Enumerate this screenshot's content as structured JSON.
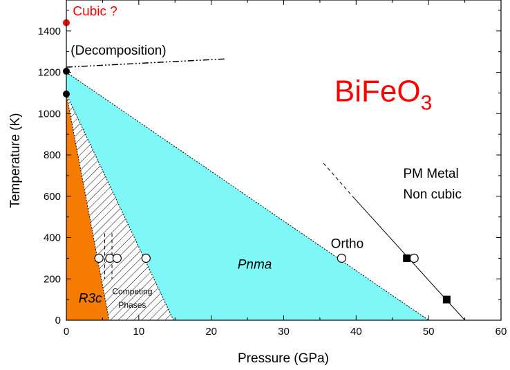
{
  "chart_data": {
    "type": "scatter",
    "title": "",
    "xlabel": "Pressure (GPa)",
    "ylabel": "Temperature (K)",
    "xlim": [
      0,
      60
    ],
    "ylim": [
      0,
      1550
    ],
    "x_ticks": [
      "0",
      "10",
      "20",
      "30",
      "40",
      "50",
      "60"
    ],
    "y_ticks": [
      "0",
      "200",
      "400",
      "600",
      "800",
      "1000",
      "1200",
      "1400"
    ],
    "grid": false,
    "regions": [
      {
        "label": "R3c",
        "color": "#f57c00",
        "polygon": [
          [
            0,
            0
          ],
          [
            0,
            1095
          ],
          [
            5.9,
            0
          ]
        ]
      },
      {
        "label": "Competing Phases",
        "color": "hatched",
        "polygon": [
          [
            0,
            1095
          ],
          [
            5.9,
            0
          ],
          [
            14.8,
            0
          ]
        ]
      },
      {
        "label": "Pnma",
        "color": "#7ff7f7",
        "polygon": [
          [
            0,
            1200
          ],
          [
            0,
            1095
          ],
          [
            14.8,
            0
          ],
          [
            50,
            0
          ]
        ]
      }
    ],
    "region_labels": [
      {
        "text": "R3c",
        "x": 3.3,
        "y": 85,
        "italic": true
      },
      {
        "text": "Competing",
        "x": 9.1,
        "y": 125
      },
      {
        "text": "Phases",
        "x": 9.1,
        "y": 60
      },
      {
        "text": "Pnma",
        "x": 26,
        "y": 250,
        "italic": true
      }
    ],
    "annotations": [
      {
        "text": "Cubic ?",
        "x": 0.9,
        "y": 1475,
        "color": "#ff0000"
      },
      {
        "text": "(Decomposition)",
        "x": 0.6,
        "y": 1285,
        "color": "#000000"
      },
      {
        "text": "Ortho",
        "x": 36.5,
        "y": 350,
        "color": "#000000"
      },
      {
        "text": "PM Metal",
        "x": 46.5,
        "y": 690,
        "color": "#000000"
      },
      {
        "text": "Non cubic",
        "x": 46.5,
        "y": 590,
        "color": "#000000"
      }
    ],
    "formula": {
      "main": "BiFeO",
      "sub": "3",
      "color": "#ff0000",
      "x": 37,
      "y": 1060
    },
    "series": [
      {
        "marker": "filled-circle",
        "color": "#ff0000",
        "points": [
          [
            0,
            1440
          ]
        ]
      },
      {
        "marker": "filled-circle",
        "color": "#000000",
        "points": [
          [
            0,
            1205
          ],
          [
            0,
            1095
          ]
        ]
      },
      {
        "marker": "open-circle",
        "color": "#000000",
        "points": [
          [
            4.5,
            300
          ],
          [
            6,
            300
          ],
          [
            7,
            300
          ],
          [
            11,
            300
          ],
          [
            38,
            300
          ],
          [
            48,
            300
          ]
        ]
      },
      {
        "marker": "filled-square",
        "color": "#000000",
        "points": [
          [
            47,
            300
          ],
          [
            52.5,
            100
          ]
        ]
      }
    ],
    "lines": [
      {
        "style": "dashdot",
        "points": [
          [
            0,
            1225
          ],
          [
            22,
            1265
          ]
        ]
      },
      {
        "style": "dotted",
        "points": [
          [
            0,
            1200
          ],
          [
            50,
            0
          ]
        ]
      },
      {
        "style": "dotted",
        "points": [
          [
            0,
            1095
          ],
          [
            14.8,
            0
          ]
        ]
      },
      {
        "style": "dotted",
        "points": [
          [
            0,
            1095
          ],
          [
            5.9,
            0
          ]
        ]
      },
      {
        "style": "dashed",
        "points": [
          [
            35.5,
            760
          ],
          [
            39.5,
            600
          ]
        ]
      },
      {
        "style": "solid",
        "points": [
          [
            39.5,
            600
          ],
          [
            55,
            0
          ]
        ]
      },
      {
        "style": "dashed",
        "points": [
          [
            5.3,
            420
          ],
          [
            5.3,
            200
          ]
        ]
      },
      {
        "style": "dashed",
        "points": [
          [
            6.3,
            420
          ],
          [
            6.3,
            200
          ]
        ]
      }
    ]
  }
}
